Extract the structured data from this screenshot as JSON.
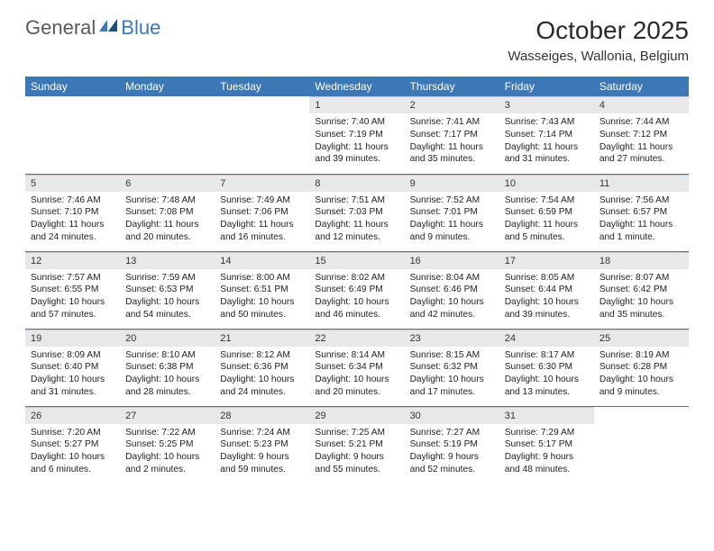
{
  "logo": {
    "general": "General",
    "blue": "Blue"
  },
  "title": "October 2025",
  "location": "Wasseiges, Wallonia, Belgium",
  "colors": {
    "header_bg": "#3b78b5",
    "header_text": "#ffffff",
    "daynum_bg": "#e8e8e8",
    "row_border": "#3b78b5",
    "body_text": "#222222",
    "page_bg": "#ffffff"
  },
  "weekdays": [
    "Sunday",
    "Monday",
    "Tuesday",
    "Wednesday",
    "Thursday",
    "Friday",
    "Saturday"
  ],
  "weeks": [
    [
      null,
      null,
      null,
      {
        "n": "1",
        "sr": "7:40 AM",
        "ss": "7:19 PM",
        "dl": "11 hours and 39 minutes."
      },
      {
        "n": "2",
        "sr": "7:41 AM",
        "ss": "7:17 PM",
        "dl": "11 hours and 35 minutes."
      },
      {
        "n": "3",
        "sr": "7:43 AM",
        "ss": "7:14 PM",
        "dl": "11 hours and 31 minutes."
      },
      {
        "n": "4",
        "sr": "7:44 AM",
        "ss": "7:12 PM",
        "dl": "11 hours and 27 minutes."
      }
    ],
    [
      {
        "n": "5",
        "sr": "7:46 AM",
        "ss": "7:10 PM",
        "dl": "11 hours and 24 minutes."
      },
      {
        "n": "6",
        "sr": "7:48 AM",
        "ss": "7:08 PM",
        "dl": "11 hours and 20 minutes."
      },
      {
        "n": "7",
        "sr": "7:49 AM",
        "ss": "7:06 PM",
        "dl": "11 hours and 16 minutes."
      },
      {
        "n": "8",
        "sr": "7:51 AM",
        "ss": "7:03 PM",
        "dl": "11 hours and 12 minutes."
      },
      {
        "n": "9",
        "sr": "7:52 AM",
        "ss": "7:01 PM",
        "dl": "11 hours and 9 minutes."
      },
      {
        "n": "10",
        "sr": "7:54 AM",
        "ss": "6:59 PM",
        "dl": "11 hours and 5 minutes."
      },
      {
        "n": "11",
        "sr": "7:56 AM",
        "ss": "6:57 PM",
        "dl": "11 hours and 1 minute."
      }
    ],
    [
      {
        "n": "12",
        "sr": "7:57 AM",
        "ss": "6:55 PM",
        "dl": "10 hours and 57 minutes."
      },
      {
        "n": "13",
        "sr": "7:59 AM",
        "ss": "6:53 PM",
        "dl": "10 hours and 54 minutes."
      },
      {
        "n": "14",
        "sr": "8:00 AM",
        "ss": "6:51 PM",
        "dl": "10 hours and 50 minutes."
      },
      {
        "n": "15",
        "sr": "8:02 AM",
        "ss": "6:49 PM",
        "dl": "10 hours and 46 minutes."
      },
      {
        "n": "16",
        "sr": "8:04 AM",
        "ss": "6:46 PM",
        "dl": "10 hours and 42 minutes."
      },
      {
        "n": "17",
        "sr": "8:05 AM",
        "ss": "6:44 PM",
        "dl": "10 hours and 39 minutes."
      },
      {
        "n": "18",
        "sr": "8:07 AM",
        "ss": "6:42 PM",
        "dl": "10 hours and 35 minutes."
      }
    ],
    [
      {
        "n": "19",
        "sr": "8:09 AM",
        "ss": "6:40 PM",
        "dl": "10 hours and 31 minutes."
      },
      {
        "n": "20",
        "sr": "8:10 AM",
        "ss": "6:38 PM",
        "dl": "10 hours and 28 minutes."
      },
      {
        "n": "21",
        "sr": "8:12 AM",
        "ss": "6:36 PM",
        "dl": "10 hours and 24 minutes."
      },
      {
        "n": "22",
        "sr": "8:14 AM",
        "ss": "6:34 PM",
        "dl": "10 hours and 20 minutes."
      },
      {
        "n": "23",
        "sr": "8:15 AM",
        "ss": "6:32 PM",
        "dl": "10 hours and 17 minutes."
      },
      {
        "n": "24",
        "sr": "8:17 AM",
        "ss": "6:30 PM",
        "dl": "10 hours and 13 minutes."
      },
      {
        "n": "25",
        "sr": "8:19 AM",
        "ss": "6:28 PM",
        "dl": "10 hours and 9 minutes."
      }
    ],
    [
      {
        "n": "26",
        "sr": "7:20 AM",
        "ss": "5:27 PM",
        "dl": "10 hours and 6 minutes."
      },
      {
        "n": "27",
        "sr": "7:22 AM",
        "ss": "5:25 PM",
        "dl": "10 hours and 2 minutes."
      },
      {
        "n": "28",
        "sr": "7:24 AM",
        "ss": "5:23 PM",
        "dl": "9 hours and 59 minutes."
      },
      {
        "n": "29",
        "sr": "7:25 AM",
        "ss": "5:21 PM",
        "dl": "9 hours and 55 minutes."
      },
      {
        "n": "30",
        "sr": "7:27 AM",
        "ss": "5:19 PM",
        "dl": "9 hours and 52 minutes."
      },
      {
        "n": "31",
        "sr": "7:29 AM",
        "ss": "5:17 PM",
        "dl": "9 hours and 48 minutes."
      },
      null
    ]
  ],
  "labels": {
    "sunrise": "Sunrise:",
    "sunset": "Sunset:",
    "daylight": "Daylight:"
  }
}
